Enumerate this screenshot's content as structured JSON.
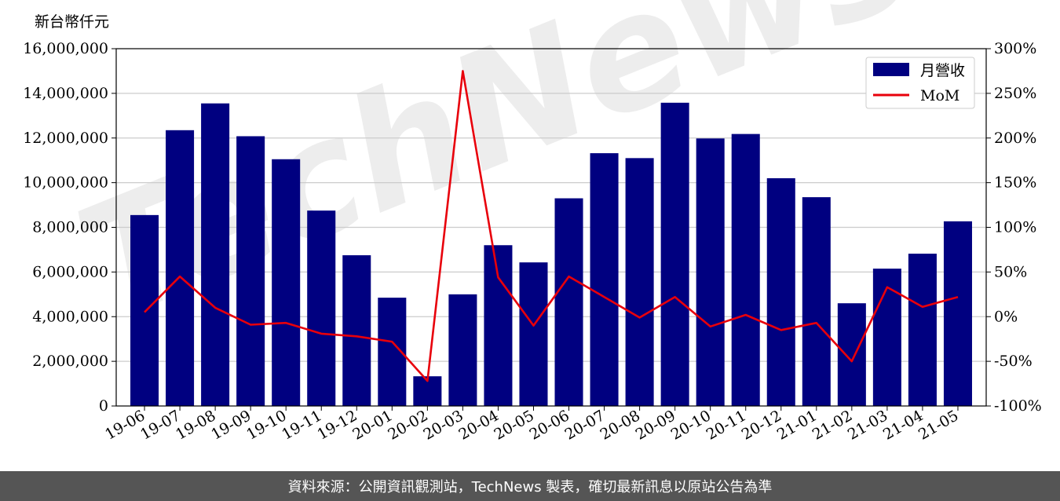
{
  "unit_label": "新台幣仟元",
  "footer_text": "資料來源：公開資訊觀測站，TechNews 製表，確切最新訊息以原站公告為準",
  "watermark_text": "TechNews",
  "colors": {
    "bar": "#000080",
    "line": "#e8000b",
    "grid": "#cccccc",
    "footer_bg": "#555555"
  },
  "chart_data": {
    "type": "bar",
    "categories": [
      "19-06",
      "19-07",
      "19-08",
      "19-09",
      "19-10",
      "19-11",
      "19-12",
      "20-01",
      "20-02",
      "20-03",
      "20-04",
      "20-05",
      "20-06",
      "20-07",
      "20-08",
      "20-09",
      "20-10",
      "20-11",
      "20-12",
      "21-01",
      "21-02",
      "21-03",
      "21-04",
      "21-05"
    ],
    "series": [
      {
        "name": "月營收",
        "type": "bar",
        "axis": "left",
        "values": [
          8550000,
          12350000,
          13550000,
          12080000,
          11050000,
          8750000,
          6750000,
          4850000,
          1330000,
          5000000,
          7200000,
          6430000,
          9300000,
          11320000,
          11100000,
          13580000,
          11980000,
          12180000,
          10200000,
          9350000,
          4600000,
          6150000,
          6820000,
          8270000
        ]
      },
      {
        "name": "MoM",
        "type": "line",
        "axis": "right",
        "values": [
          5,
          45,
          10,
          -9,
          -7,
          -19,
          -22,
          -28,
          -72,
          275,
          44,
          -10,
          45,
          22,
          -1,
          22,
          -11,
          2,
          -15,
          -7,
          -50,
          33,
          11,
          22
        ]
      }
    ],
    "ylim_left": [
      0,
      16000000
    ],
    "yticks_left": [
      "0",
      "2,000,000",
      "4,000,000",
      "6,000,000",
      "8,000,000",
      "10,000,000",
      "12,000,000",
      "14,000,000",
      "16,000,000"
    ],
    "ylim_right": [
      -100,
      300
    ],
    "yticks_right": [
      "-100%",
      "-50%",
      "0%",
      "50%",
      "100%",
      "150%",
      "200%",
      "250%",
      "300%"
    ],
    "grid": "horizontal",
    "legend": "top-right"
  }
}
